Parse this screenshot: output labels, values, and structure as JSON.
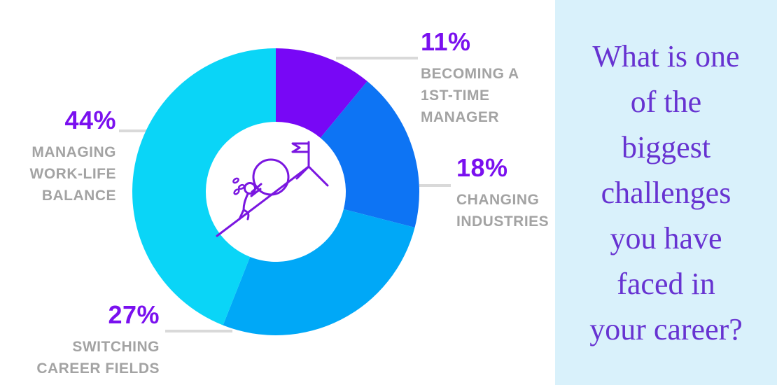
{
  "chart_data": {
    "type": "pie",
    "subtype": "donut",
    "direction": "clockwise",
    "start_angle_deg": 0,
    "center_icon": "person-pushing-boulder-uphill-with-flag",
    "slices": [
      {
        "value": 11,
        "pct_text": "11%",
        "label": "BECOMING A\n1ST-TIME\nMANAGER",
        "color": "#7807f6"
      },
      {
        "value": 18,
        "pct_text": "18%",
        "label": "CHANGING\nINDUSTRIES",
        "color": "#0d74f4"
      },
      {
        "value": 27,
        "pct_text": "27%",
        "label": "SWITCHING\nCAREER FIELDS",
        "color": "#00a8f7"
      },
      {
        "value": 44,
        "pct_text": "44%",
        "label": "MANAGING\nWORK-LIFE\nBALANCE",
        "color": "#0ad5f7"
      }
    ]
  },
  "question_panel": {
    "text": "What is one\nof the\nbiggest\nchallenges\nyou have\nfaced in\nyour career?",
    "bg_color": "#d9f1fb",
    "text_color": "#6733d1"
  },
  "colors": {
    "background": "#ffffff",
    "pct_text": "#7a10ef",
    "label_text": "#a3a3a3",
    "leader_line": "#d9d9d9",
    "illustration": "#7a16e0"
  }
}
